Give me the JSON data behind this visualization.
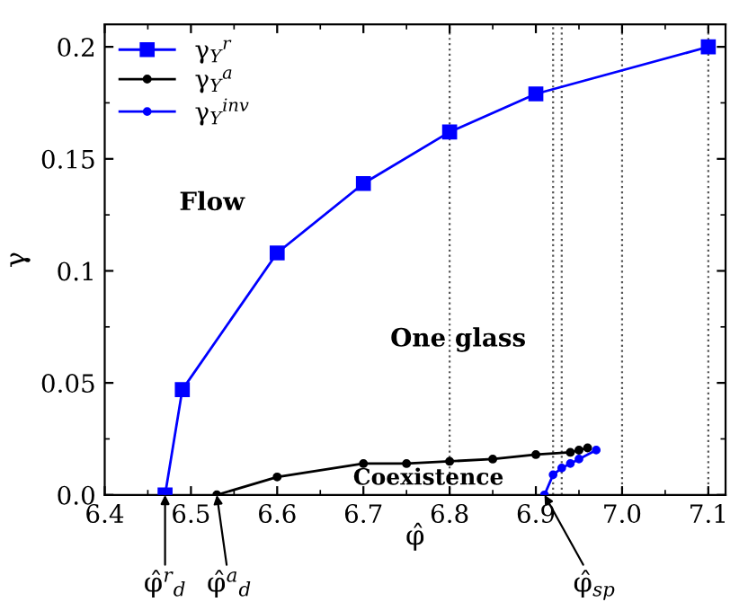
{
  "chart_data": {
    "type": "line",
    "xlabel": "φ̂",
    "ylabel": "γ",
    "xlim": [
      6.4,
      7.12
    ],
    "ylim": [
      0,
      0.21
    ],
    "xticks": [
      {
        "value": 6.4,
        "label": "6.4"
      },
      {
        "value": 6.5,
        "label": "6.5"
      },
      {
        "value": 6.6,
        "label": "6.6"
      },
      {
        "value": 6.7,
        "label": "6.7"
      },
      {
        "value": 6.8,
        "label": "6.8"
      },
      {
        "value": 6.9,
        "label": "6.9"
      },
      {
        "value": 7.0,
        "label": "7.0"
      },
      {
        "value": 7.1,
        "label": "7.1"
      }
    ],
    "yticks": [
      {
        "value": 0,
        "label": "0.0"
      },
      0.05,
      0.1,
      0.15,
      0.2
    ],
    "legend": "top left",
    "grid": false,
    "series": [
      {
        "name": "γ$_{Y}$$^{r}$",
        "color": "#0000ff",
        "marker": "square",
        "x": [
          6.47,
          6.49,
          6.6,
          6.7,
          6.8,
          6.9,
          7.1
        ],
        "values": [
          0,
          0.047,
          0.108,
          0.139,
          0.162,
          0.179,
          0.2
        ]
      },
      {
        "name": "γ$_{Y}$$^{a}$",
        "color": "#000000",
        "marker": "circle",
        "x": [
          6.53,
          6.6,
          6.7,
          6.75,
          6.8,
          6.85,
          6.9,
          6.94,
          6.95,
          6.96
        ],
        "values": [
          0,
          0.008,
          0.014,
          0.014,
          0.015,
          0.016,
          0.018,
          0.019,
          0.02,
          0.021
        ]
      },
      {
        "name": "γ$_{Y}$$^{inv}$",
        "color": "#0000ff",
        "marker": "circle",
        "x": [
          6.91,
          6.92,
          6.93,
          6.94,
          6.95,
          6.97
        ],
        "values": [
          0,
          0.009,
          0.012,
          0.014,
          0.016,
          0.02
        ]
      }
    ],
    "ref_lines": [
      {
        "axis": "x",
        "value": 6.8,
        "line_style": "dotted",
        "color": "#555555"
      },
      {
        "axis": "x",
        "value": 6.92,
        "line_style": "dotted",
        "color": "#555555"
      },
      {
        "axis": "x",
        "value": 6.93,
        "line_style": "dotted",
        "color": "#555555"
      },
      {
        "axis": "x",
        "value": 7.0,
        "line_style": "dotted",
        "color": "#555555"
      },
      {
        "axis": "x",
        "value": 7.1,
        "line_style": "dotted",
        "color": "#555555"
      }
    ],
    "annotations": [
      "Flow",
      "One glass",
      "Coexistence",
      {
        "text": "φ̂$^{r}$$_{d}$",
        "x": 6.47,
        "y": 0
      },
      {
        "text": "φ̂$^{a}$$_{d}$",
        "x": 6.53,
        "y": 0
      },
      {
        "text": "φ̂$_{sp}$",
        "x": 6.91,
        "y": 0
      }
    ]
  }
}
